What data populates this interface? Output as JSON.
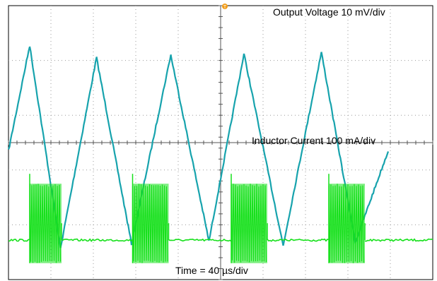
{
  "chart_data": {
    "type": "line",
    "title": "",
    "grid": true,
    "annotations": {
      "voltage_label": "Output Voltage 10 mV/div",
      "current_label": "Inductor Current 100 mA/div",
      "time_label": "Time = 40 µs/div"
    },
    "x_axis": {
      "divisions": 10,
      "units_per_div": "40 µs",
      "xlim": [
        0,
        400
      ]
    },
    "series": [
      {
        "name": "Output Voltage 10 mV/div",
        "channel": "voltage",
        "color": "#17a3ad",
        "x": [
          0,
          20,
          49,
          83,
          116,
          153,
          189,
          222,
          259,
          295,
          327,
          358
        ],
        "y": [
          2.35,
          4.27,
          0.57,
          4.05,
          0.65,
          4.1,
          0.7,
          4.12,
          0.62,
          4.15,
          0.68,
          2.35
        ]
      },
      {
        "name": "Inductor Current 100 mA/div",
        "channel": "current",
        "color": "#16e01b",
        "bursts": [
          {
            "x_start": 20,
            "x_end": 50
          },
          {
            "x_start": 117,
            "x_end": 151
          },
          {
            "x_start": 210,
            "x_end": 244
          },
          {
            "x_start": 302,
            "x_end": 336
          }
        ],
        "baseline": 0.72,
        "burst_peak": 1.75,
        "burst_low": 0.3
      }
    ]
  }
}
